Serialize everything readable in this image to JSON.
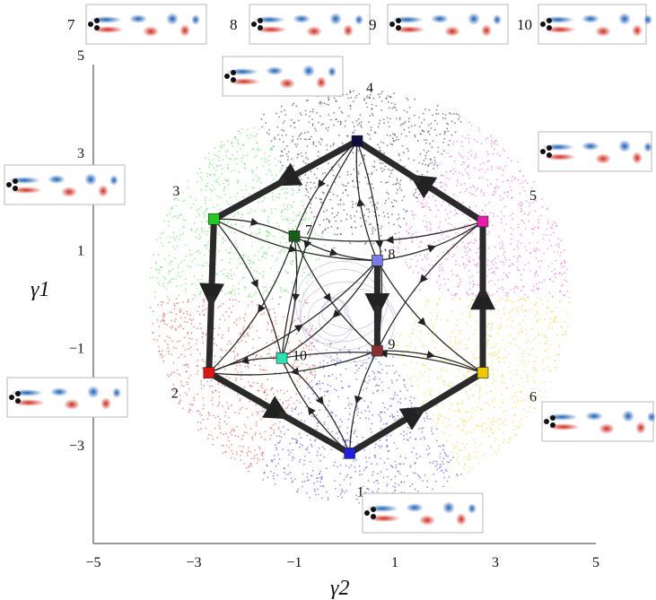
{
  "chart_data": {
    "type": "network-scatter",
    "xlabel": "γ2",
    "ylabel": "γ1",
    "xlim": [
      -5,
      5
    ],
    "ylim": [
      -5,
      5
    ],
    "x_ticks": [
      -5,
      -3,
      -1,
      1,
      3,
      5
    ],
    "y_ticks": [
      5,
      3,
      1,
      -1,
      -3
    ],
    "x_tick_labels": [
      "−5",
      "−3",
      "−1",
      "1",
      "3",
      "5"
    ],
    "y_tick_labels": [
      "5",
      "3",
      "1",
      "−1",
      "−3"
    ],
    "nodes": [
      {
        "id": "1",
        "x": 0.1,
        "y": -3.15,
        "color": "#1f1fe0"
      },
      {
        "id": "2",
        "x": -2.7,
        "y": -1.5,
        "color": "#e01414"
      },
      {
        "id": "3",
        "x": -2.6,
        "y": 1.65,
        "color": "#22cc22"
      },
      {
        "id": "4",
        "x": 0.25,
        "y": 3.25,
        "color": "#0d0d40"
      },
      {
        "id": "5",
        "x": 2.75,
        "y": 1.6,
        "color": "#e81aa8"
      },
      {
        "id": "6",
        "x": 2.75,
        "y": -1.5,
        "color": "#f0c800"
      },
      {
        "id": "7",
        "x": -1.0,
        "y": 1.3,
        "color": "#1a5c1a"
      },
      {
        "id": "8",
        "x": 0.65,
        "y": 0.8,
        "color": "#7b7bea"
      },
      {
        "id": "9",
        "x": 0.65,
        "y": -1.05,
        "color": "#8b3030"
      },
      {
        "id": "10",
        "x": -1.25,
        "y": -1.2,
        "color": "#2ee0b0"
      }
    ],
    "clusters": [
      {
        "id": "1",
        "color": "#3a3ae8",
        "angle_from": 240,
        "angle_to": 300
      },
      {
        "id": "2",
        "color": "#e83a3a",
        "angle_from": 180,
        "angle_to": 240
      },
      {
        "id": "3",
        "color": "#46e046",
        "angle_from": 120,
        "angle_to": 180
      },
      {
        "id": "4",
        "color": "#20205a",
        "angle_from": 60,
        "angle_to": 120
      },
      {
        "id": "5",
        "color": "#f04fd0",
        "angle_from": 0,
        "angle_to": 60
      },
      {
        "id": "6",
        "color": "#f2d21e",
        "angle_from": -60,
        "angle_to": 0
      }
    ],
    "thick_edges": [
      [
        "2",
        "1"
      ],
      [
        "1",
        "6"
      ],
      [
        "6",
        "5"
      ],
      [
        "5",
        "4"
      ],
      [
        "4",
        "3"
      ],
      [
        "3",
        "2"
      ],
      [
        "8",
        "9"
      ]
    ],
    "thin_edges": [
      [
        "3",
        "7"
      ],
      [
        "3",
        "8"
      ],
      [
        "3",
        "10"
      ],
      [
        "7",
        "8"
      ],
      [
        "7",
        "10"
      ],
      [
        "7",
        "9"
      ],
      [
        "7",
        "2"
      ],
      [
        "8",
        "5"
      ],
      [
        "8",
        "4"
      ],
      [
        "8",
        "6"
      ],
      [
        "8",
        "10"
      ],
      [
        "4",
        "7"
      ],
      [
        "4",
        "9"
      ],
      [
        "4",
        "10"
      ],
      [
        "5",
        "7"
      ],
      [
        "5",
        "9"
      ],
      [
        "9",
        "6"
      ],
      [
        "9",
        "1"
      ],
      [
        "9",
        "2"
      ],
      [
        "10",
        "2"
      ],
      [
        "10",
        "1"
      ],
      [
        "6",
        "10"
      ],
      [
        "1",
        "10"
      ],
      [
        "2",
        "8"
      ]
    ]
  },
  "snapshots": [
    {
      "label": "7"
    },
    {
      "label": "8"
    },
    {
      "label": "9"
    },
    {
      "label": "10"
    },
    {
      "label": "4"
    },
    {
      "label": "3"
    },
    {
      "label": "5"
    },
    {
      "label": "2"
    },
    {
      "label": "6"
    },
    {
      "label": "1"
    }
  ],
  "colors": {
    "vortex_blue": "#1a5fb4",
    "vortex_red": "#d0281a",
    "edge": "#2a2a2a"
  }
}
